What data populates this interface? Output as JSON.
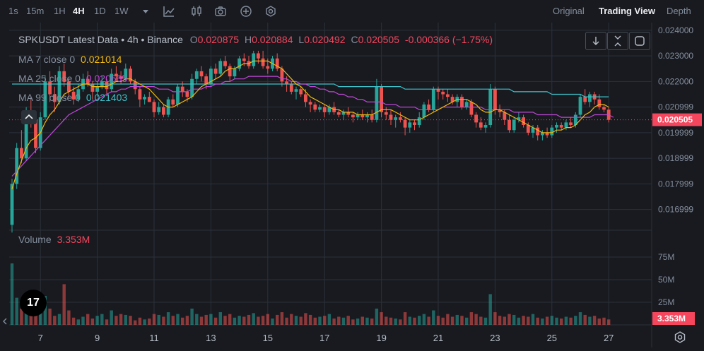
{
  "toolbar": {
    "timeframes": [
      {
        "label": "1s",
        "active": false
      },
      {
        "label": "15m",
        "active": false
      },
      {
        "label": "1H",
        "active": false
      },
      {
        "label": "4H",
        "active": true
      },
      {
        "label": "1D",
        "active": false
      },
      {
        "label": "1W",
        "active": false
      }
    ],
    "icons": [
      "dropdown-caret-icon",
      "indicators-icon",
      "candle-type-icon",
      "camera-icon",
      "plus-circle-icon",
      "settings-hex-icon"
    ],
    "views": [
      {
        "label": "Original",
        "active": false
      },
      {
        "label": "Trading View",
        "active": true
      },
      {
        "label": "Depth",
        "active": false
      }
    ]
  },
  "legend": {
    "symbol": "SPKUSDT Latest Data • 4h • Binance",
    "open_label": "O",
    "open": "0.020875",
    "high_label": "H",
    "high": "0.020884",
    "low_label": "L",
    "low": "0.020492",
    "close_label": "C",
    "close": "0.020505",
    "change": "-0.000366 (−1.75%)",
    "ma7_label": "MA 7 close 0",
    "ma7_value": "0.021014",
    "ma25_label": "MA 25 close 0",
    "ma25_value": "0.020565",
    "ma99_label": "MA 99 close 0",
    "ma99_value": "0.021403",
    "volume_label": "Volume",
    "volume_value": "3.353M"
  },
  "logo_text": "17",
  "colors": {
    "up": "#26a69a",
    "down": "#ef5350",
    "ma7": "#f0b90b",
    "ma25": "#c048d6",
    "ma99": "#3fc1c9",
    "background": "#181a20",
    "grid": "#2b3139",
    "price_badge": "#f6465d"
  },
  "chart_data": {
    "type": "candlestick",
    "interval": "4h",
    "price_axis": {
      "ticks": [
        0.024,
        0.023,
        0.022,
        0.020999,
        0.019999,
        0.018999,
        0.017999,
        0.016999
      ],
      "tick_labels": [
        "0.024000",
        "0.023000",
        "0.022000",
        "0.020999",
        "0.019999",
        "0.018999",
        "0.017999",
        "0.016999"
      ],
      "range": [
        0.0163,
        0.0243
      ],
      "last_price": 0.020505,
      "last_price_label": "0.020505"
    },
    "volume_axis": {
      "ticks": [
        75,
        50,
        25
      ],
      "tick_labels": [
        "75M",
        "50M",
        "25M"
      ],
      "unit": "M",
      "last_volume_label": "3.353M"
    },
    "x_axis": {
      "tick_labels": [
        "7",
        "9",
        "11",
        "13",
        "15",
        "17",
        "19",
        "21",
        "23",
        "25",
        "27"
      ],
      "tick_positions": [
        6,
        18,
        30,
        42,
        54,
        66,
        78,
        90,
        102,
        114,
        126
      ]
    },
    "candles": [
      [
        0.0164,
        0.0182,
        0.0161,
        0.018,
        68
      ],
      [
        0.018,
        0.0196,
        0.0178,
        0.0194,
        30
      ],
      [
        0.0194,
        0.0201,
        0.0188,
        0.019,
        18
      ],
      [
        0.019,
        0.021,
        0.0189,
        0.0208,
        26
      ],
      [
        0.0208,
        0.0214,
        0.0202,
        0.0205,
        20
      ],
      [
        0.0205,
        0.0206,
        0.0192,
        0.0194,
        16
      ],
      [
        0.0194,
        0.0208,
        0.0193,
        0.0206,
        14
      ],
      [
        0.0206,
        0.0222,
        0.0205,
        0.022,
        32
      ],
      [
        0.022,
        0.0224,
        0.0212,
        0.0215,
        18
      ],
      [
        0.0215,
        0.0218,
        0.0208,
        0.0212,
        10
      ],
      [
        0.0212,
        0.0226,
        0.0211,
        0.0224,
        12
      ],
      [
        0.0224,
        0.0227,
        0.0218,
        0.022,
        45
      ],
      [
        0.022,
        0.0221,
        0.0214,
        0.0216,
        16
      ],
      [
        0.0216,
        0.0218,
        0.0211,
        0.0213,
        8
      ],
      [
        0.0213,
        0.0219,
        0.0212,
        0.0217,
        6
      ],
      [
        0.0217,
        0.0223,
        0.0216,
        0.0221,
        9
      ],
      [
        0.0221,
        0.0224,
        0.0218,
        0.0219,
        12
      ],
      [
        0.0219,
        0.022,
        0.0213,
        0.0216,
        7
      ],
      [
        0.0216,
        0.022,
        0.0214,
        0.0218,
        10
      ],
      [
        0.0218,
        0.0222,
        0.0217,
        0.022,
        12
      ],
      [
        0.022,
        0.0221,
        0.0215,
        0.0217,
        6
      ],
      [
        0.0217,
        0.0225,
        0.0216,
        0.0223,
        16
      ],
      [
        0.0223,
        0.0226,
        0.022,
        0.0222,
        10
      ],
      [
        0.0222,
        0.0224,
        0.0219,
        0.0221,
        12
      ],
      [
        0.0221,
        0.0227,
        0.022,
        0.0225,
        11
      ],
      [
        0.0225,
        0.0226,
        0.0219,
        0.022,
        10
      ],
      [
        0.022,
        0.0221,
        0.0215,
        0.0217,
        5
      ],
      [
        0.0217,
        0.0218,
        0.021,
        0.0213,
        8
      ],
      [
        0.0213,
        0.0215,
        0.0211,
        0.0214,
        6
      ],
      [
        0.0214,
        0.0216,
        0.0212,
        0.0212,
        7
      ],
      [
        0.0212,
        0.0213,
        0.0206,
        0.0208,
        12
      ],
      [
        0.0208,
        0.0212,
        0.0207,
        0.021,
        11
      ],
      [
        0.021,
        0.0211,
        0.0206,
        0.0207,
        9
      ],
      [
        0.0207,
        0.0214,
        0.0206,
        0.0213,
        14
      ],
      [
        0.0213,
        0.0215,
        0.021,
        0.0211,
        10
      ],
      [
        0.0211,
        0.0219,
        0.021,
        0.0218,
        12
      ],
      [
        0.0218,
        0.022,
        0.0214,
        0.0216,
        8
      ],
      [
        0.0216,
        0.0217,
        0.0212,
        0.0214,
        10
      ],
      [
        0.0214,
        0.0223,
        0.0213,
        0.0221,
        18
      ],
      [
        0.0221,
        0.0225,
        0.0219,
        0.0224,
        12
      ],
      [
        0.0224,
        0.0226,
        0.022,
        0.0222,
        9
      ],
      [
        0.0222,
        0.0223,
        0.0217,
        0.0219,
        11
      ],
      [
        0.0219,
        0.0226,
        0.0218,
        0.0225,
        12
      ],
      [
        0.0225,
        0.0227,
        0.0221,
        0.0223,
        8
      ],
      [
        0.0223,
        0.0229,
        0.0222,
        0.0228,
        14
      ],
      [
        0.0228,
        0.023,
        0.0225,
        0.0226,
        10
      ],
      [
        0.0226,
        0.0227,
        0.022,
        0.0222,
        12
      ],
      [
        0.0222,
        0.0226,
        0.0221,
        0.0225,
        8
      ],
      [
        0.0225,
        0.023,
        0.0224,
        0.0229,
        10
      ],
      [
        0.0229,
        0.0231,
        0.0226,
        0.0228,
        9
      ],
      [
        0.0228,
        0.023,
        0.0225,
        0.0226,
        11
      ],
      [
        0.0226,
        0.0232,
        0.0225,
        0.0231,
        13
      ],
      [
        0.0231,
        0.0232,
        0.0227,
        0.0229,
        9
      ],
      [
        0.0229,
        0.0232,
        0.0225,
        0.0226,
        10
      ],
      [
        0.0226,
        0.0229,
        0.0223,
        0.0225,
        12
      ],
      [
        0.0225,
        0.023,
        0.0224,
        0.0229,
        7
      ],
      [
        0.0229,
        0.0231,
        0.0224,
        0.0225,
        11
      ],
      [
        0.0225,
        0.0226,
        0.0218,
        0.022,
        14
      ],
      [
        0.022,
        0.0222,
        0.0216,
        0.0219,
        8
      ],
      [
        0.0219,
        0.022,
        0.0215,
        0.0216,
        12
      ],
      [
        0.0216,
        0.0218,
        0.0213,
        0.0217,
        10
      ],
      [
        0.0217,
        0.0218,
        0.0214,
        0.0215,
        9
      ],
      [
        0.0215,
        0.0217,
        0.021,
        0.0212,
        13
      ],
      [
        0.0212,
        0.0213,
        0.0208,
        0.0211,
        11
      ],
      [
        0.0211,
        0.0212,
        0.0208,
        0.0209,
        8
      ],
      [
        0.0209,
        0.0211,
        0.0208,
        0.021,
        9
      ],
      [
        0.021,
        0.0211,
        0.0206,
        0.0208,
        10
      ],
      [
        0.0208,
        0.0211,
        0.0207,
        0.021,
        12
      ],
      [
        0.021,
        0.0212,
        0.0207,
        0.0208,
        7
      ],
      [
        0.0208,
        0.0209,
        0.0206,
        0.0207,
        9
      ],
      [
        0.0207,
        0.0209,
        0.0205,
        0.0208,
        8
      ],
      [
        0.0208,
        0.021,
        0.0206,
        0.0207,
        10
      ],
      [
        0.0207,
        0.0208,
        0.0204,
        0.0206,
        6
      ],
      [
        0.0206,
        0.0208,
        0.0205,
        0.0207,
        7
      ],
      [
        0.0207,
        0.0209,
        0.0205,
        0.0206,
        9
      ],
      [
        0.0206,
        0.0208,
        0.0204,
        0.0207,
        8
      ],
      [
        0.0207,
        0.0209,
        0.0204,
        0.0205,
        7
      ],
      [
        0.0205,
        0.0221,
        0.0204,
        0.0218,
        18
      ],
      [
        0.0218,
        0.0219,
        0.0206,
        0.0208,
        14
      ],
      [
        0.0208,
        0.021,
        0.0205,
        0.0207,
        9
      ],
      [
        0.0207,
        0.0209,
        0.0203,
        0.0205,
        8
      ],
      [
        0.0205,
        0.0207,
        0.0202,
        0.0206,
        7
      ],
      [
        0.0206,
        0.0208,
        0.0204,
        0.0205,
        6
      ],
      [
        0.0205,
        0.0206,
        0.0199,
        0.0202,
        14
      ],
      [
        0.0202,
        0.0205,
        0.02,
        0.0204,
        9
      ],
      [
        0.0204,
        0.0205,
        0.0201,
        0.0203,
        8
      ],
      [
        0.0203,
        0.0208,
        0.0202,
        0.0206,
        10
      ],
      [
        0.0206,
        0.0212,
        0.0205,
        0.0211,
        12
      ],
      [
        0.0211,
        0.0213,
        0.0208,
        0.0209,
        9
      ],
      [
        0.0209,
        0.0218,
        0.0208,
        0.0217,
        16
      ],
      [
        0.0217,
        0.0218,
        0.0213,
        0.0216,
        10
      ],
      [
        0.0216,
        0.0217,
        0.0213,
        0.0215,
        8
      ],
      [
        0.0215,
        0.0217,
        0.0212,
        0.0214,
        12
      ],
      [
        0.0214,
        0.0215,
        0.0211,
        0.0212,
        9
      ],
      [
        0.0212,
        0.0215,
        0.021,
        0.0214,
        11
      ],
      [
        0.0214,
        0.0215,
        0.0209,
        0.021,
        10
      ],
      [
        0.021,
        0.0213,
        0.0209,
        0.0212,
        8
      ],
      [
        0.0212,
        0.0213,
        0.0206,
        0.0207,
        14
      ],
      [
        0.0207,
        0.0208,
        0.0202,
        0.0204,
        12
      ],
      [
        0.0204,
        0.0206,
        0.0201,
        0.0202,
        9
      ],
      [
        0.0202,
        0.0204,
        0.02,
        0.0203,
        8
      ],
      [
        0.0203,
        0.0219,
        0.0202,
        0.0217,
        34
      ],
      [
        0.0217,
        0.0218,
        0.0207,
        0.0209,
        14
      ],
      [
        0.0209,
        0.0211,
        0.0206,
        0.0208,
        10
      ],
      [
        0.0208,
        0.0209,
        0.0203,
        0.0205,
        9
      ],
      [
        0.0205,
        0.0207,
        0.02,
        0.0201,
        12
      ],
      [
        0.0201,
        0.0206,
        0.02,
        0.0205,
        11
      ],
      [
        0.0205,
        0.0208,
        0.0204,
        0.0206,
        8
      ],
      [
        0.0206,
        0.0207,
        0.0202,
        0.0203,
        10
      ],
      [
        0.0203,
        0.0204,
        0.0199,
        0.02,
        9
      ],
      [
        0.02,
        0.0203,
        0.0198,
        0.0202,
        12
      ],
      [
        0.0202,
        0.0203,
        0.0197,
        0.0199,
        8
      ],
      [
        0.0199,
        0.0201,
        0.0197,
        0.02,
        7
      ],
      [
        0.02,
        0.0202,
        0.0198,
        0.0199,
        9
      ],
      [
        0.0199,
        0.0203,
        0.0198,
        0.0202,
        10
      ],
      [
        0.0202,
        0.0204,
        0.02,
        0.0203,
        8
      ],
      [
        0.0203,
        0.0204,
        0.0201,
        0.0202,
        7
      ],
      [
        0.0202,
        0.0205,
        0.0201,
        0.0204,
        9
      ],
      [
        0.0204,
        0.0206,
        0.0202,
        0.0203,
        8
      ],
      [
        0.0203,
        0.0208,
        0.0202,
        0.0207,
        10
      ],
      [
        0.0207,
        0.0215,
        0.0206,
        0.0214,
        14
      ],
      [
        0.0214,
        0.0217,
        0.0211,
        0.0212,
        11
      ],
      [
        0.0212,
        0.0216,
        0.021,
        0.0215,
        9
      ],
      [
        0.0215,
        0.0216,
        0.0211,
        0.0213,
        10
      ],
      [
        0.0213,
        0.0215,
        0.0209,
        0.021,
        7
      ],
      [
        0.021,
        0.0211,
        0.0208,
        0.0209,
        8
      ],
      [
        0.0209,
        0.021,
        0.0204,
        0.0205,
        6
      ]
    ],
    "ma7": [
      0.0178,
      0.0184,
      0.0189,
      0.0194,
      0.0197,
      0.0198,
      0.02,
      0.0204,
      0.0207,
      0.0209,
      0.0212,
      0.0215,
      0.0216,
      0.0217,
      0.0218,
      0.0219,
      0.0219,
      0.0218,
      0.0218,
      0.0218,
      0.0218,
      0.0219,
      0.022,
      0.022,
      0.0221,
      0.0221,
      0.022,
      0.0219,
      0.0218,
      0.0217,
      0.0215,
      0.0213,
      0.0211,
      0.021,
      0.021,
      0.0211,
      0.0212,
      0.0213,
      0.0214,
      0.0216,
      0.0218,
      0.0219,
      0.022,
      0.0221,
      0.0222,
      0.0224,
      0.0225,
      0.0225,
      0.0226,
      0.0227,
      0.0227,
      0.0228,
      0.0228,
      0.0228,
      0.0228,
      0.0227,
      0.0226,
      0.0225,
      0.0223,
      0.0221,
      0.0219,
      0.0218,
      0.0216,
      0.0214,
      0.0213,
      0.0212,
      0.0211,
      0.021,
      0.0209,
      0.0209,
      0.0208,
      0.0208,
      0.0208,
      0.0207,
      0.0207,
      0.0207,
      0.0207,
      0.0208,
      0.0209,
      0.0209,
      0.0209,
      0.0208,
      0.0207,
      0.0206,
      0.0205,
      0.0205,
      0.0205,
      0.0206,
      0.0207,
      0.0208,
      0.0209,
      0.021,
      0.0211,
      0.0212,
      0.0213,
      0.0213,
      0.0213,
      0.0212,
      0.0211,
      0.0209,
      0.0208,
      0.0208,
      0.0209,
      0.0209,
      0.0208,
      0.0207,
      0.0206,
      0.0205,
      0.0204,
      0.0203,
      0.0202,
      0.0201,
      0.02,
      0.02,
      0.02,
      0.0201,
      0.0201,
      0.0202,
      0.0202,
      0.0203,
      0.0205,
      0.0207,
      0.0208,
      0.021,
      0.0211,
      0.0211,
      0.021
    ],
    "ma25": [
      0.0183,
      0.0185,
      0.0187,
      0.0189,
      0.0191,
      0.0193,
      0.0195,
      0.0197,
      0.0199,
      0.0201,
      0.0203,
      0.0205,
      0.0207,
      0.0208,
      0.0209,
      0.021,
      0.0211,
      0.0212,
      0.0213,
      0.0214,
      0.0215,
      0.0216,
      0.0216,
      0.0217,
      0.0217,
      0.0218,
      0.0218,
      0.0218,
      0.0218,
      0.0218,
      0.0218,
      0.0217,
      0.0217,
      0.0217,
      0.0216,
      0.0216,
      0.0216,
      0.0216,
      0.0217,
      0.0217,
      0.0217,
      0.0218,
      0.0218,
      0.0219,
      0.0219,
      0.022,
      0.022,
      0.0221,
      0.0221,
      0.0221,
      0.0222,
      0.0222,
      0.0222,
      0.0222,
      0.0222,
      0.0222,
      0.0222,
      0.0221,
      0.0221,
      0.022,
      0.022,
      0.0219,
      0.0219,
      0.0218,
      0.0218,
      0.0217,
      0.0217,
      0.0216,
      0.0216,
      0.0215,
      0.0215,
      0.0214,
      0.0214,
      0.0213,
      0.0213,
      0.0212,
      0.0212,
      0.0212,
      0.0212,
      0.0211,
      0.0211,
      0.0211,
      0.021,
      0.021,
      0.021,
      0.021,
      0.0209,
      0.0209,
      0.0209,
      0.0209,
      0.0209,
      0.021,
      0.021,
      0.021,
      0.021,
      0.021,
      0.021,
      0.021,
      0.021,
      0.021,
      0.0209,
      0.0209,
      0.0209,
      0.0209,
      0.0209,
      0.0209,
      0.0208,
      0.0208,
      0.0208,
      0.0208,
      0.0208,
      0.0207,
      0.0207,
      0.0207,
      0.0207,
      0.0207,
      0.0206,
      0.0206,
      0.0206,
      0.0206,
      0.0206,
      0.0206,
      0.0206,
      0.0207,
      0.0207,
      0.0207,
      0.0207,
      0.0206
    ],
    "ma99": [
      0.0219,
      0.0219,
      0.0219,
      0.0219,
      0.0219,
      0.0219,
      0.0219,
      0.0219,
      0.0219,
      0.0219,
      0.0219,
      0.0219,
      0.0219,
      0.0219,
      0.0219,
      0.0219,
      0.0219,
      0.0219,
      0.0219,
      0.0219,
      0.0219,
      0.0219,
      0.0219,
      0.0219,
      0.0219,
      0.0219,
      0.0219,
      0.0219,
      0.0219,
      0.0219,
      0.0219,
      0.0219,
      0.0219,
      0.0219,
      0.0219,
      0.0219,
      0.0219,
      0.0219,
      0.0219,
      0.0219,
      0.0219,
      0.0219,
      0.0219,
      0.0219,
      0.0219,
      0.0219,
      0.0219,
      0.0219,
      0.0219,
      0.0219,
      0.0219,
      0.0219,
      0.0219,
      0.0219,
      0.0219,
      0.0219,
      0.0219,
      0.0219,
      0.0219,
      0.0219,
      0.0219,
      0.0219,
      0.0219,
      0.0219,
      0.0219,
      0.0219,
      0.0219,
      0.0219,
      0.0219,
      0.0218,
      0.0218,
      0.0218,
      0.0218,
      0.0218,
      0.0218,
      0.0218,
      0.0218,
      0.0218,
      0.0218,
      0.0218,
      0.0218,
      0.0218,
      0.0218,
      0.0217,
      0.0217,
      0.0217,
      0.0217,
      0.0217,
      0.0217,
      0.0217,
      0.0217,
      0.0217,
      0.0217,
      0.0217,
      0.0217,
      0.0217,
      0.0217,
      0.0217,
      0.0217,
      0.0217,
      0.0217,
      0.0217,
      0.0217,
      0.0217,
      0.0217,
      0.0217,
      0.0216,
      0.0216,
      0.0216,
      0.0216,
      0.0216,
      0.0216,
      0.0216,
      0.0216,
      0.0215,
      0.0215,
      0.0215,
      0.0215,
      0.0215,
      0.0215,
      0.0215,
      0.0214,
      0.0214,
      0.0214,
      0.0214,
      0.0214,
      0.0214
    ]
  }
}
